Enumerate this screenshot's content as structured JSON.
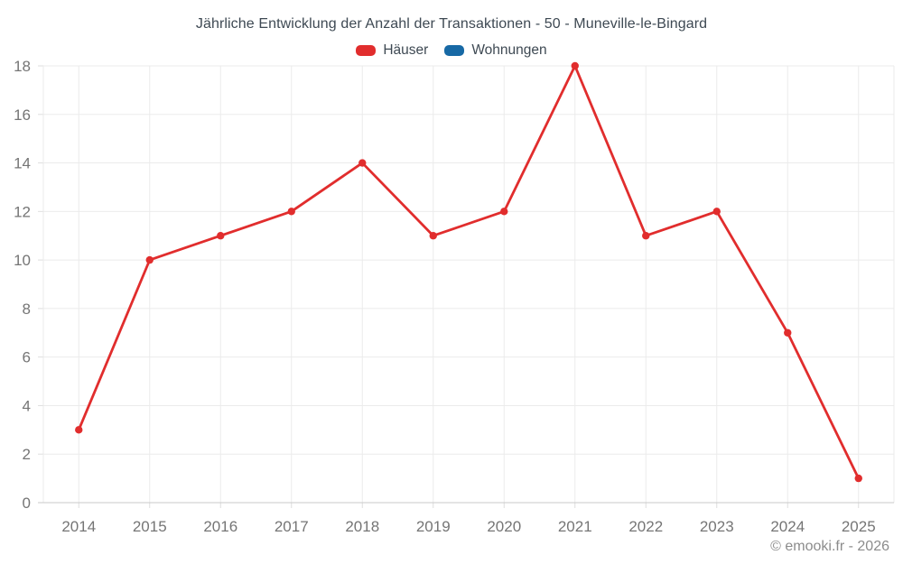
{
  "chart": {
    "title": "Jährliche Entwicklung der Anzahl der Transaktionen - 50 - Muneville-le-Bingard",
    "legend": [
      {
        "label": "Häuser",
        "color": "#e12d2d"
      },
      {
        "label": "Wohnungen",
        "color": "#1769a5"
      }
    ]
  },
  "chart_data": {
    "type": "line",
    "title": "Jährliche Entwicklung der Anzahl der Transaktionen - 50 - Muneville-le-Bingard",
    "categories": [
      "2014",
      "2015",
      "2016",
      "2017",
      "2018",
      "2019",
      "2020",
      "2021",
      "2022",
      "2023",
      "2024",
      "2025"
    ],
    "series": [
      {
        "name": "Häuser",
        "color": "#e12d2d",
        "values": [
          3,
          10,
          11,
          12,
          14,
          11,
          12,
          18,
          11,
          12,
          7,
          1
        ]
      },
      {
        "name": "Wohnungen",
        "color": "#1769a5",
        "values": []
      }
    ],
    "xlabel": "",
    "ylabel": "",
    "ylim": [
      0,
      18
    ],
    "ytick_step": 2,
    "grid": true,
    "legend_position": "top"
  },
  "footer": {
    "copyright": "© emooki.fr - 2026"
  }
}
